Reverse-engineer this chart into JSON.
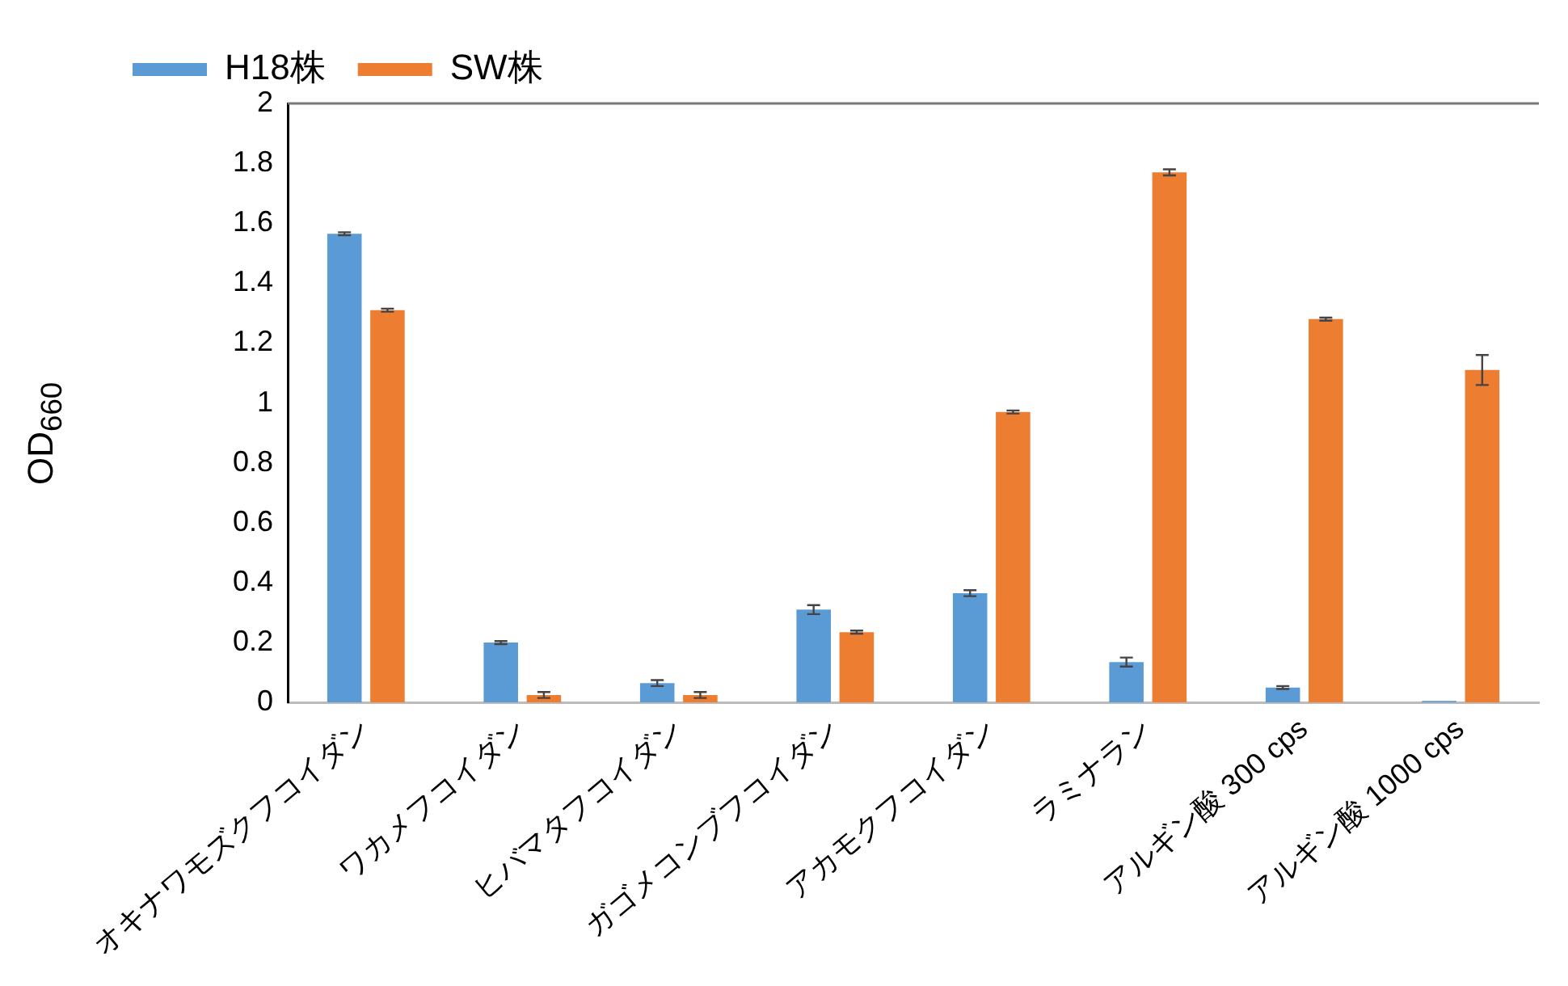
{
  "chart_data": {
    "type": "bar",
    "ylabel": "OD$_{660}$",
    "categories": [
      "オキナワモズクフコイダン",
      "ワカメフコイダン",
      "ヒバマタフコイダン",
      "ガゴメコンブフコイダン",
      "アカモクフコイダン",
      "ラミナラン",
      "アルギン酸 300 cps",
      "アルギン酸 1000 cps"
    ],
    "series": [
      {
        "name": "H18株",
        "color": "#5b9bd5",
        "values": [
          1.565,
          0.2,
          0.065,
          0.31,
          0.365,
          0.135,
          0.05,
          0.005
        ],
        "errors": [
          0.005,
          0.005,
          0.01,
          0.015,
          0.01,
          0.015,
          0.005,
          null
        ]
      },
      {
        "name": "SW株",
        "color": "#ed7d31",
        "values": [
          1.31,
          0.025,
          0.025,
          0.235,
          0.97,
          1.77,
          1.28,
          1.11
        ],
        "errors": [
          0.005,
          0.01,
          0.01,
          0.005,
          0.005,
          0.01,
          0.005,
          0.05
        ]
      }
    ],
    "ylim": [
      0,
      2
    ],
    "yticks": [
      0,
      0.2,
      0.4,
      0.6,
      0.8,
      1,
      1.2,
      1.4,
      1.6,
      1.8,
      2
    ],
    "grid": false,
    "legend": "top left"
  }
}
